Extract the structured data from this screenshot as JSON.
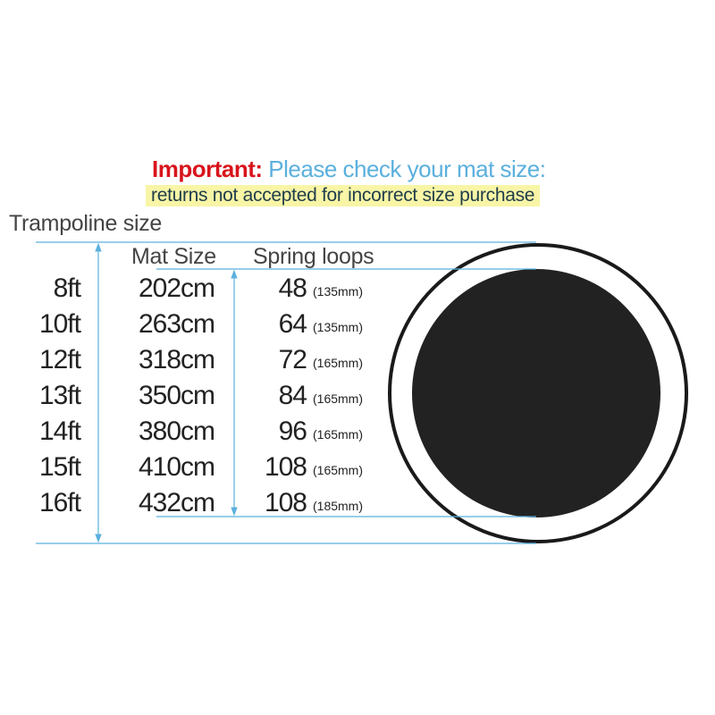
{
  "notice": {
    "important_label": "Important:",
    "message": "Please check your mat size:",
    "returns_note": "returns not accepted for incorrect size purchase"
  },
  "headers": {
    "trampoline_size": "Trampoline size",
    "mat_size": "Mat Size",
    "spring_loops": "Spring loops"
  },
  "rows": [
    {
      "size": "8ft",
      "mat": "202cm",
      "loops": "48",
      "spring": "(135mm)"
    },
    {
      "size": "10ft",
      "mat": "263cm",
      "loops": "64",
      "spring": "(135mm)"
    },
    {
      "size": "12ft",
      "mat": "318cm",
      "loops": "72",
      "spring": "(165mm)"
    },
    {
      "size": "13ft",
      "mat": "350cm",
      "loops": "84",
      "spring": "(165mm)"
    },
    {
      "size": "14ft",
      "mat": "380cm",
      "loops": "96",
      "spring": "(165mm)"
    },
    {
      "size": "15ft",
      "mat": "410cm",
      "loops": "108",
      "spring": "(165mm)"
    },
    {
      "size": "16ft",
      "mat": "432cm",
      "loops": "108",
      "spring": "(185mm)"
    }
  ],
  "colors": {
    "important": "#d8141c",
    "accent": "#5bb0dd",
    "highlight": "#f8f5a6",
    "mat": "#222222"
  }
}
